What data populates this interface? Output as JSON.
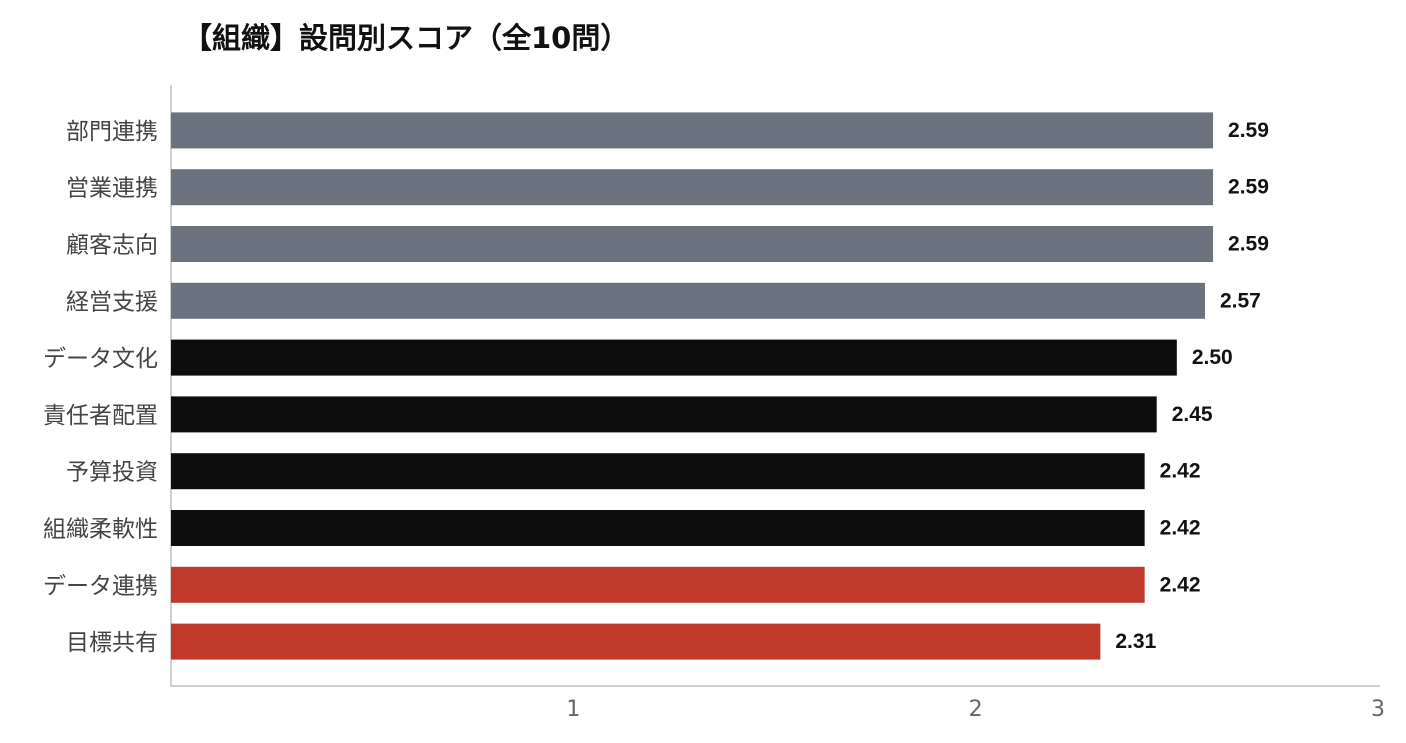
{
  "chart_data": {
    "type": "barh",
    "title": "【組織】設問別スコア（全10問）",
    "categories": [
      "部門連携",
      "営業連携",
      "顧客志向",
      "経営支援",
      "データ文化",
      "責任者配置",
      "予算投資",
      "組織柔軟性",
      "データ連携",
      "目標共有"
    ],
    "values": [
      2.59,
      2.59,
      2.59,
      2.57,
      2.5,
      2.45,
      2.42,
      2.42,
      2.42,
      2.31
    ],
    "value_labels": [
      "2.59",
      "2.59",
      "2.59",
      "2.57",
      "2.50",
      "2.45",
      "2.42",
      "2.42",
      "2.42",
      "2.31"
    ],
    "colors": [
      "#6b737e",
      "#6b737e",
      "#6b737e",
      "#6b737e",
      "#0d0d0d",
      "#0d0d0d",
      "#0d0d0d",
      "#0d0d0d",
      "#c0392b",
      "#c0392b"
    ],
    "xlim": [
      0,
      3
    ],
    "xticks": [
      1,
      2,
      3
    ],
    "grid": false
  }
}
